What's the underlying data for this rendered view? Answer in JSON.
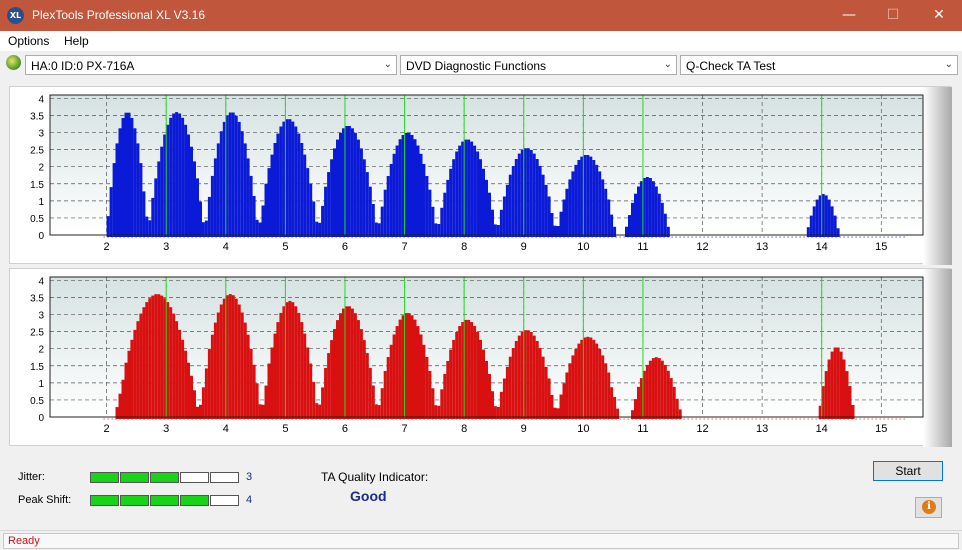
{
  "window": {
    "title": "PlexTools Professional XL V3.16",
    "icon_label": "XL",
    "minimize_glyph": "—",
    "maximize_glyph": "☐",
    "close_glyph": "✕"
  },
  "menu": {
    "options_label": "Options",
    "help_label": "Help"
  },
  "toolbar": {
    "drive_value": "HA:0 ID:0  PX-716A",
    "function_value": "DVD Diagnostic Functions",
    "test_value": "Q-Check TA Test"
  },
  "bottom": {
    "jitter_label": "Jitter:",
    "jitter_value": "3",
    "jitter_level": 3,
    "peak_shift_label": "Peak Shift:",
    "peak_shift_value": "4",
    "peak_shift_level": 4,
    "meter_cells": 5,
    "ta_label": "TA Quality Indicator:",
    "ta_value": "Good",
    "start_label": "Start",
    "info_glyph": "i"
  },
  "status": {
    "text": "Ready"
  },
  "colors": {
    "titlebar": "#c0563b",
    "top_bars": "#0a1ad6",
    "bottom_bars": "#d81010",
    "peak_lines": "#22dd22",
    "meter_on": "#18d418"
  },
  "chart_data": [
    {
      "type": "bar",
      "title": "",
      "x_ticks": [
        2,
        3,
        4,
        5,
        6,
        7,
        8,
        9,
        10,
        11,
        12,
        13,
        14,
        15
      ],
      "y_ticks": [
        "0",
        "0.5",
        "1",
        "1.5",
        "2",
        "2.5",
        "3",
        "3.5",
        "4"
      ],
      "xlim": [
        1.05,
        15.7
      ],
      "ylim": [
        0,
        4.1
      ],
      "grid": true,
      "peak_lines": [
        3,
        4,
        5,
        6,
        7,
        8,
        9,
        10,
        11,
        14
      ],
      "humps": [
        {
          "start": 2.0,
          "end": 2.7,
          "peak": 3.6
        },
        {
          "start": 2.7,
          "end": 3.65,
          "peak": 3.6
        },
        {
          "start": 3.65,
          "end": 4.55,
          "peak": 3.6
        },
        {
          "start": 4.55,
          "end": 5.55,
          "peak": 3.4
        },
        {
          "start": 5.55,
          "end": 6.55,
          "peak": 3.2
        },
        {
          "start": 6.55,
          "end": 7.55,
          "peak": 3.0
        },
        {
          "start": 7.55,
          "end": 8.55,
          "peak": 2.8
        },
        {
          "start": 8.55,
          "end": 9.55,
          "peak": 2.55
        },
        {
          "start": 9.55,
          "end": 10.55,
          "peak": 2.35
        },
        {
          "start": 10.7,
          "end": 11.45,
          "peak": 1.7
        },
        {
          "start": 13.75,
          "end": 14.3,
          "peak": 1.2
        }
      ],
      "series": [
        {
          "values": "hump profile"
        }
      ]
    },
    {
      "type": "bar",
      "title": "",
      "x_ticks": [
        2,
        3,
        4,
        5,
        6,
        7,
        8,
        9,
        10,
        11,
        12,
        13,
        14,
        15
      ],
      "y_ticks": [
        "0",
        "0.5",
        "1",
        "1.5",
        "2",
        "2.5",
        "3",
        "3.5",
        "4"
      ],
      "xlim": [
        1.05,
        15.7
      ],
      "ylim": [
        0,
        4.1
      ],
      "grid": true,
      "peak_lines": [
        3,
        4,
        5,
        6,
        7,
        8,
        9,
        10,
        11,
        14
      ],
      "humps": [
        {
          "start": 2.15,
          "end": 3.55,
          "peak": 3.6
        },
        {
          "start": 3.55,
          "end": 4.6,
          "peak": 3.6
        },
        {
          "start": 4.6,
          "end": 5.55,
          "peak": 3.4
        },
        {
          "start": 5.55,
          "end": 6.55,
          "peak": 3.25
        },
        {
          "start": 6.55,
          "end": 7.55,
          "peak": 3.05
        },
        {
          "start": 7.55,
          "end": 8.55,
          "peak": 2.85
        },
        {
          "start": 8.55,
          "end": 9.55,
          "peak": 2.55
        },
        {
          "start": 9.55,
          "end": 10.6,
          "peak": 2.35
        },
        {
          "start": 10.8,
          "end": 11.65,
          "peak": 1.75
        },
        {
          "start": 13.95,
          "end": 14.55,
          "peak": 2.05
        }
      ]
    }
  ]
}
